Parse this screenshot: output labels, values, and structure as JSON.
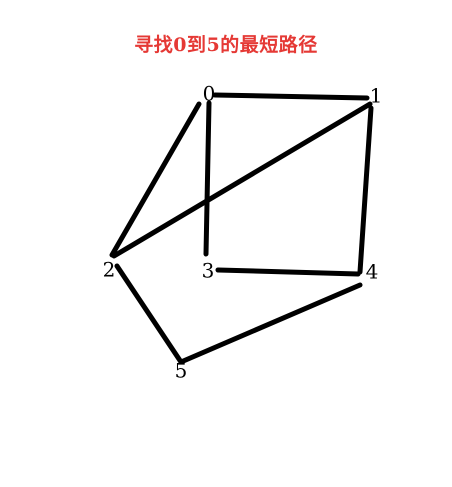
{
  "title": "寻找0到5的最短路径",
  "colors": {
    "title": "#e53935",
    "edge": "#000000",
    "background": "#ffffff"
  },
  "graph": {
    "nodes": [
      "0",
      "1",
      "2",
      "3",
      "4",
      "5"
    ],
    "edges": [
      [
        "0",
        "1"
      ],
      [
        "0",
        "3"
      ],
      [
        "0",
        "2"
      ],
      [
        "2",
        "1"
      ],
      [
        "1",
        "4"
      ],
      [
        "3",
        "4"
      ],
      [
        "2",
        "5"
      ],
      [
        "5",
        "4"
      ]
    ]
  }
}
